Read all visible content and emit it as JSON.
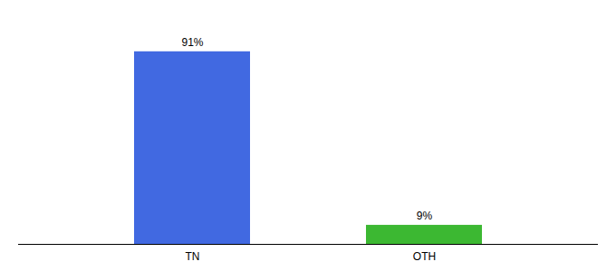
{
  "chart_data": {
    "type": "bar",
    "categories": [
      "TN",
      "OTH"
    ],
    "values": [
      91,
      9
    ],
    "value_labels": [
      "91%",
      "9%"
    ],
    "colors": [
      "#4169e1",
      "#3cb832"
    ],
    "ylim": [
      0,
      105
    ],
    "data_labels": true,
    "tick_labels": "x"
  }
}
